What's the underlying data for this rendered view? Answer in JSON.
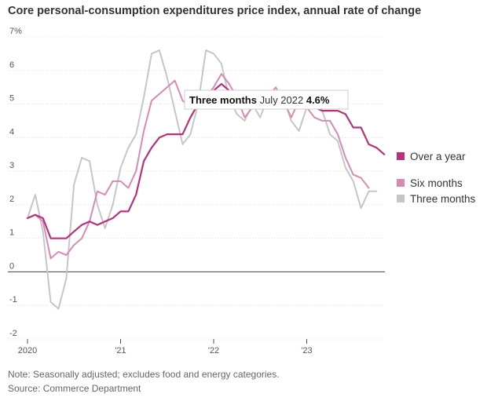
{
  "title": "Core personal-consumption expenditures price index, annual rate of change",
  "footnote": "Note: Seasonally adjusted; excludes food and energy categories.",
  "source": "Source: Commerce Department",
  "tooltip": {
    "series": "Three months",
    "date": "July 2022",
    "value": "4.6%"
  },
  "chart_data": {
    "type": "line",
    "ylim": [
      -2,
      7
    ],
    "yticks": [
      -2,
      -1,
      0,
      1,
      2,
      3,
      4,
      5,
      6,
      7
    ],
    "ytick_labels": [
      "-2",
      "-1",
      "0",
      "1",
      "2",
      "3",
      "4",
      "5",
      "6",
      "7%"
    ],
    "xticks": [
      {
        "x": 2020.0,
        "label": "2020"
      },
      {
        "x": 2021.0,
        "label": "'21"
      },
      {
        "x": 2022.0,
        "label": "'22"
      },
      {
        "x": 2023.0,
        "label": "'23"
      }
    ],
    "x_start": 2020.0,
    "x_step": 0.08333,
    "series": [
      {
        "name": "Over a year",
        "color": "#b8317a",
        "values": [
          1.6,
          1.7,
          1.6,
          1.0,
          1.0,
          1.0,
          1.2,
          1.4,
          1.5,
          1.4,
          1.5,
          1.6,
          1.8,
          1.8,
          2.3,
          3.3,
          3.7,
          4.0,
          4.1,
          4.1,
          4.1,
          4.6,
          5.0,
          5.2,
          5.4,
          5.6,
          5.4,
          5.2,
          5.0,
          5.0,
          4.9,
          5.0,
          5.3,
          5.3,
          5.2,
          5.0,
          4.9,
          4.9,
          4.8,
          4.8,
          4.8,
          4.7,
          4.3,
          4.3,
          3.8,
          3.7,
          3.5
        ]
      },
      {
        "name": "Six months",
        "color": "#d98ab4",
        "values": [
          1.6,
          1.7,
          1.5,
          0.4,
          0.6,
          0.5,
          0.8,
          1.0,
          1.5,
          2.4,
          2.3,
          2.7,
          2.7,
          2.5,
          3.0,
          4.2,
          5.1,
          5.3,
          5.5,
          5.7,
          5.1,
          4.9,
          5.0,
          5.2,
          5.5,
          5.9,
          5.6,
          5.2,
          4.6,
          4.9,
          5.1,
          5.2,
          5.5,
          5.1,
          4.6,
          5.1,
          4.9,
          4.6,
          4.5,
          4.5,
          4.1,
          3.4,
          2.9,
          2.8,
          2.5
        ]
      },
      {
        "name": "Three months",
        "color": "#c6c6c6",
        "values": [
          1.6,
          2.3,
          1.2,
          -0.9,
          -1.1,
          -0.2,
          2.6,
          3.4,
          3.3,
          2.0,
          1.3,
          2.0,
          3.1,
          3.7,
          4.1,
          5.2,
          6.5,
          6.6,
          5.8,
          4.8,
          3.8,
          4.1,
          5.0,
          6.6,
          6.5,
          6.2,
          5.2,
          4.7,
          4.5,
          5.0,
          4.6,
          5.2,
          5.4,
          5.2,
          4.5,
          4.2,
          4.9,
          5.0,
          4.8,
          4.1,
          3.9,
          3.1,
          2.7,
          1.9,
          2.4,
          2.4
        ]
      }
    ]
  }
}
